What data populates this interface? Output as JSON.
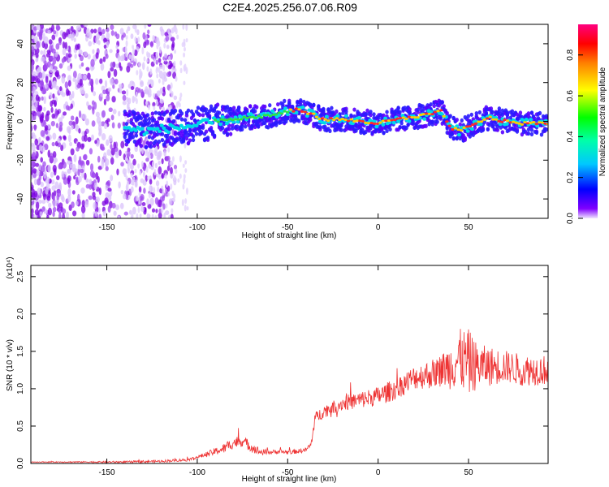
{
  "title": "C2E4.2025.256.07.06.R09",
  "chart_data": [
    {
      "type": "heatmap",
      "name": "spectrogram",
      "xlabel": "Height of straight line (km)",
      "ylabel": "Frequency (Hz)",
      "xlim": [
        -192,
        94
      ],
      "ylim": [
        -50,
        50
      ],
      "xticks": [
        -150,
        -100,
        -50,
        0,
        50
      ],
      "yticks": [
        -40,
        -20,
        0,
        20,
        40
      ],
      "colorbar": {
        "label": "Normalized spectral amplitude",
        "range": [
          0,
          0.95
        ],
        "ticks": [
          0.0,
          0.2,
          0.4,
          0.6,
          0.8
        ],
        "tick_labels": [
          "0.0",
          "0.2",
          "0.4",
          "0.6",
          "0.8"
        ],
        "colormap": [
          "#f0e6ff",
          "#8000ff",
          "#0000ff",
          "#00ffff",
          "#00ff00",
          "#ffff00",
          "#ff8000",
          "#ff0000",
          "#ff0080"
        ]
      },
      "ridge": {
        "x": [
          -140,
          -130,
          -120,
          -110,
          -100,
          -90,
          -80,
          -70,
          -60,
          -50,
          -45,
          -40,
          -30,
          -20,
          -10,
          0,
          10,
          20,
          30,
          35,
          40,
          45,
          50,
          55,
          60,
          70,
          80,
          90
        ],
        "y": [
          -3,
          -5,
          -4,
          -3,
          -2,
          0,
          1,
          2,
          3,
          5,
          6,
          5,
          1,
          1,
          0,
          -1,
          1,
          2,
          4,
          5,
          -3,
          -5,
          -3,
          -1,
          2,
          0,
          -1,
          -1
        ]
      }
    },
    {
      "type": "line",
      "name": "snr",
      "xlabel": "Height of straight line (km)",
      "ylabel": "SNR (10 * v/v)",
      "y_multiplier": "(x10⁴)",
      "xlim": [
        -192,
        94
      ],
      "ylim": [
        0,
        2.65
      ],
      "xticks": [
        -150,
        -100,
        -50,
        0,
        50
      ],
      "yticks": [
        0.0,
        0.5,
        1.0,
        1.5,
        2.0,
        2.5
      ],
      "ytick_labels": [
        "0.0",
        "0.5",
        "1.0",
        "1.5",
        "2.0",
        "2.5"
      ],
      "color": "#ee3333",
      "envelope": {
        "x": [
          -192,
          -140,
          -120,
          -105,
          -95,
          -85,
          -80,
          -75,
          -70,
          -65,
          -60,
          -55,
          -50,
          -45,
          -40,
          -37,
          -35,
          -30,
          -20,
          -10,
          0,
          10,
          20,
          30,
          40,
          45,
          50,
          55,
          60,
          70,
          80,
          94
        ],
        "y": [
          0.02,
          0.02,
          0.03,
          0.05,
          0.12,
          0.2,
          0.28,
          0.3,
          0.22,
          0.15,
          0.15,
          0.16,
          0.15,
          0.16,
          0.18,
          0.25,
          0.6,
          0.7,
          0.8,
          0.85,
          0.9,
          1.0,
          1.15,
          1.2,
          1.3,
          1.4,
          1.35,
          1.3,
          1.3,
          1.3,
          1.25,
          1.25
        ]
      },
      "spread": {
        "x": [
          -192,
          -100,
          -80,
          -70,
          -60,
          -40,
          -35,
          -20,
          0,
          20,
          35,
          45,
          50,
          55,
          70,
          94
        ],
        "y": [
          0.004,
          0.02,
          0.08,
          0.07,
          0.03,
          0.03,
          0.08,
          0.1,
          0.13,
          0.16,
          0.22,
          0.4,
          0.45,
          0.3,
          0.22,
          0.2
        ]
      }
    }
  ]
}
